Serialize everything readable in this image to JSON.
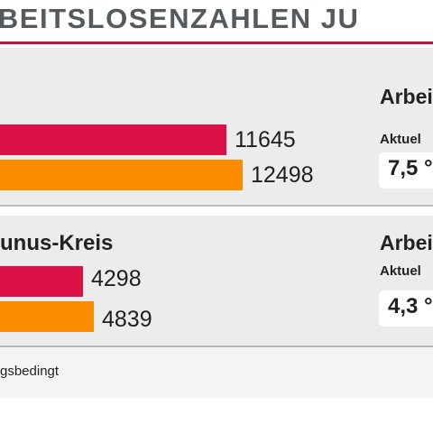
{
  "header": {
    "title": "RBEITSLOSENZAHLEN JU"
  },
  "chart_data": [
    {
      "type": "bar",
      "title": "",
      "categories": [
        "",
        ""
      ],
      "values": [
        11645,
        12498
      ],
      "colors": [
        "#dc1146",
        "#fb8c00"
      ],
      "orientation": "horizontal"
    },
    {
      "type": "bar",
      "title": "unus-Kreis",
      "categories": [
        "",
        ""
      ],
      "values": [
        4298,
        4839
      ],
      "colors": [
        "#dc1146",
        "#fb8c00"
      ],
      "orientation": "horizontal"
    }
  ],
  "sidebar": {
    "top": {
      "title": "Arbei",
      "subtitle": "Aktuel",
      "rate": "7,5 °"
    },
    "bottom": {
      "title": "Arbei",
      "subtitle": "Aktuel",
      "rate": "4,3 °"
    }
  },
  "footnote": "gsbedingt"
}
